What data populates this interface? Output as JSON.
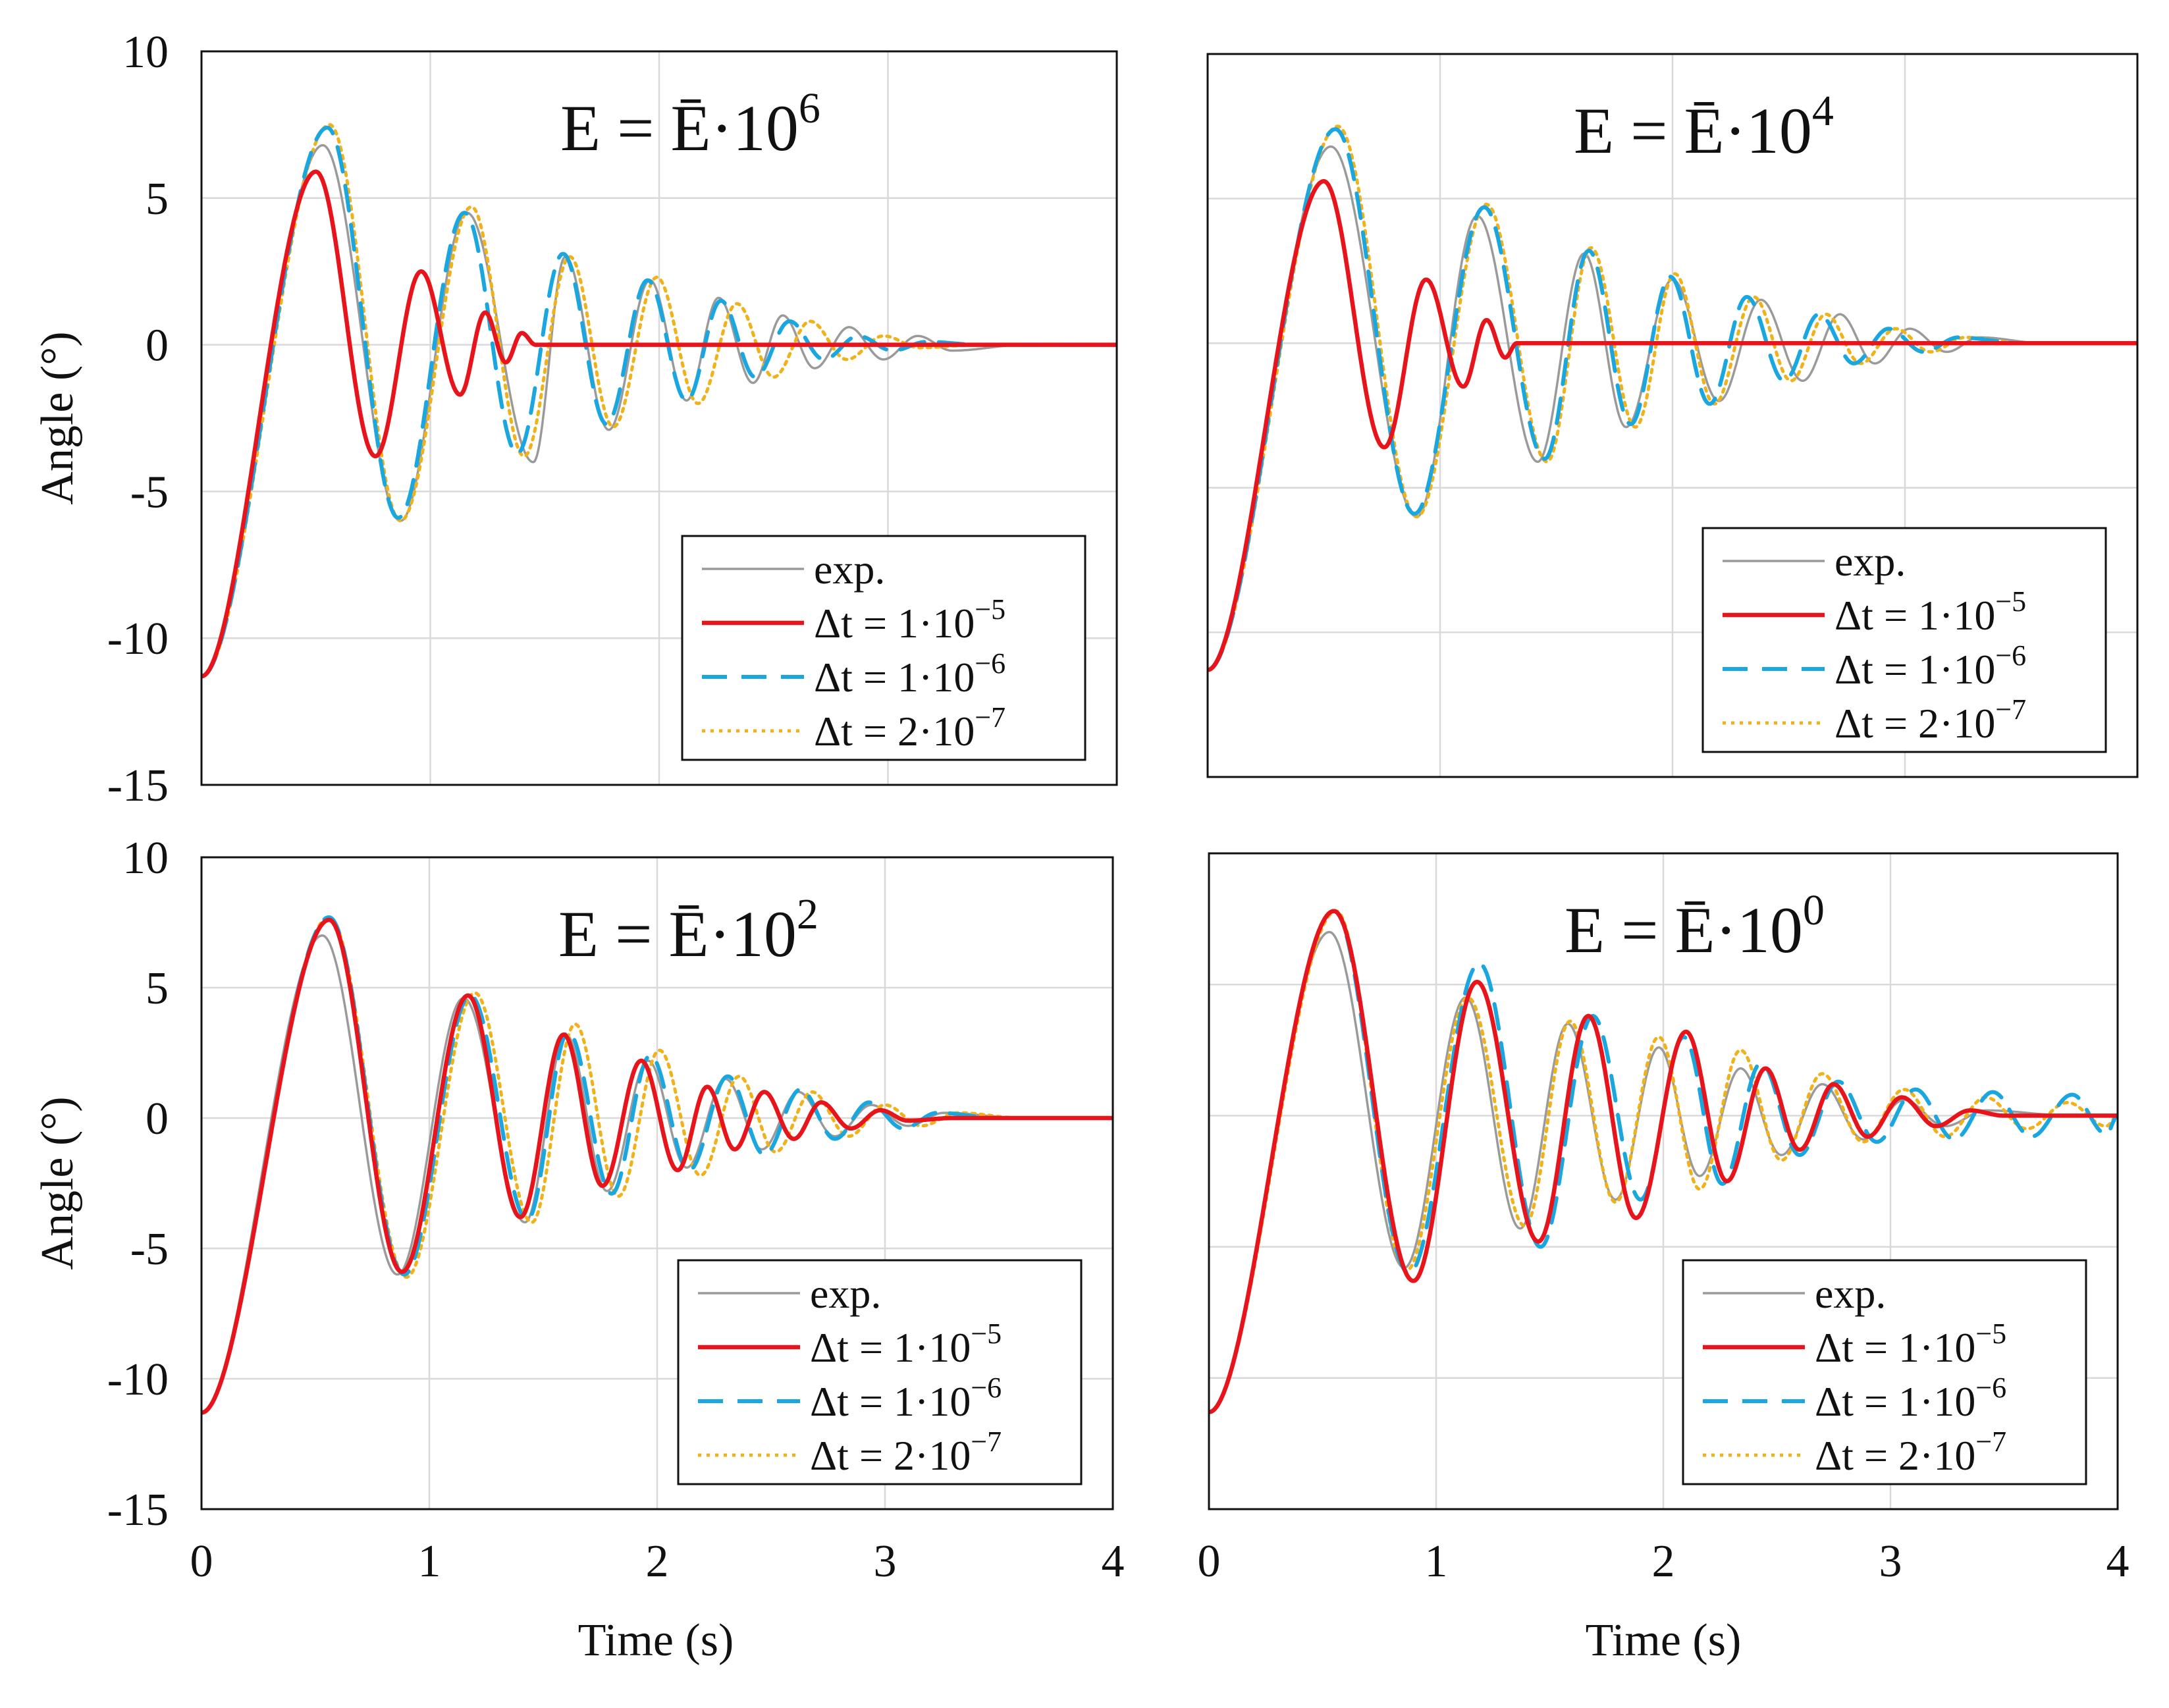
{
  "figure": {
    "ylabel": "Angle (°)",
    "xlabel": "Time (s)"
  },
  "legend": {
    "entries": [
      {
        "key": "exp",
        "parts": [
          "exp."
        ],
        "color": "#9a9a9a",
        "dash": "solid"
      },
      {
        "key": "dt1e5",
        "parts": [
          "Δt = 1·10",
          "−5"
        ],
        "color": "#e8141c",
        "dash": "solid"
      },
      {
        "key": "dt1e6",
        "parts": [
          "Δt = 1·10",
          "−6"
        ],
        "color": "#1aa7e0",
        "dash": "dashed"
      },
      {
        "key": "dt2e7",
        "parts": [
          "Δt = 2·10",
          "−7"
        ],
        "color": "#f0b21a",
        "dash": "dotted"
      }
    ]
  },
  "colors": {
    "exp": "#9a9a9a",
    "red": "#e8141c",
    "blue": "#1aa7e0",
    "yellow": "#f0b21a",
    "grid": "#d9d9d9",
    "frame": "#111111"
  },
  "chart_data": [
    {
      "type": "line",
      "title": {
        "base": "E = Ē·10",
        "exp": "6"
      },
      "xlabel": "",
      "ylabel": "Angle (°)",
      "xlim": [
        0,
        4
      ],
      "ylim": [
        -15,
        10
      ],
      "xticks": [
        0,
        1,
        2,
        3,
        4
      ],
      "yticks": [
        10,
        5,
        0,
        -5,
        -10,
        -15
      ],
      "xtick_labels_shown": false,
      "ytick_labels_shown": true,
      "grid": true,
      "legend": "bottom-right",
      "series": [
        {
          "name": "exp.",
          "peak_times": [
            0.53,
            0.87,
            1.16,
            1.45,
            1.59,
            1.78,
            1.96,
            2.12,
            2.26,
            2.41,
            2.54,
            2.68,
            2.83,
            2.98,
            3.13,
            3.28
          ],
          "peak_values": [
            6.8,
            -6.0,
            4.5,
            -4.0,
            3.0,
            -2.9,
            2.2,
            -1.9,
            1.6,
            -1.3,
            1.0,
            -0.8,
            0.6,
            -0.5,
            0.3,
            -0.2
          ],
          "settle": 3.6
        },
        {
          "name": "Δt = 1·10^-5",
          "peak_times": [
            0.5,
            0.76,
            0.96,
            1.13,
            1.24,
            1.33,
            1.4,
            1.46
          ],
          "peak_values": [
            5.9,
            -3.8,
            2.5,
            -1.7,
            1.1,
            -0.6,
            0.4,
            0.0
          ],
          "settle": 1.5
        },
        {
          "name": "Δt = 1·10^-6",
          "peak_times": [
            0.55,
            0.86,
            1.15,
            1.38,
            1.58,
            1.77,
            1.95,
            2.12,
            2.27,
            2.42,
            2.57,
            2.72,
            2.87,
            3.02,
            3.17
          ],
          "peak_values": [
            7.4,
            -5.9,
            4.5,
            -3.7,
            3.1,
            -2.7,
            2.2,
            -1.9,
            1.5,
            -1.1,
            0.8,
            -0.5,
            0.3,
            -0.2,
            0.1
          ],
          "settle": 3.4
        },
        {
          "name": "Δt = 2·10^-7",
          "peak_times": [
            0.56,
            0.87,
            1.18,
            1.41,
            1.61,
            1.8,
            1.99,
            2.17,
            2.34,
            2.5,
            2.66,
            2.82,
            2.98,
            3.14
          ],
          "peak_values": [
            7.5,
            -6.0,
            4.7,
            -3.8,
            3.0,
            -2.8,
            2.3,
            -2.0,
            1.4,
            -1.1,
            0.8,
            -0.5,
            0.3,
            -0.1
          ],
          "settle": 3.4
        }
      ]
    },
    {
      "type": "line",
      "title": {
        "base": "E = Ē·10",
        "exp": "4"
      },
      "xlabel": "",
      "ylabel": "",
      "xlim": [
        0,
        4
      ],
      "ylim": [
        -15,
        10
      ],
      "xticks": [
        0,
        1,
        2,
        3,
        4
      ],
      "yticks": [
        10,
        5,
        0,
        -5,
        -10,
        -15
      ],
      "xtick_labels_shown": false,
      "ytick_labels_shown": false,
      "grid": true,
      "legend": "bottom-right",
      "series": [
        {
          "name": "exp.",
          "peak_times": [
            0.53,
            0.9,
            1.16,
            1.42,
            1.62,
            1.8,
            2.0,
            2.2,
            2.38,
            2.56,
            2.72,
            2.87,
            3.02,
            3.18,
            3.32
          ],
          "peak_values": [
            6.8,
            -6.0,
            4.4,
            -4.1,
            3.1,
            -2.9,
            2.2,
            -2.0,
            1.5,
            -1.3,
            1.0,
            -0.7,
            0.5,
            -0.3,
            0.2
          ],
          "settle": 3.6
        },
        {
          "name": "Δt = 1·10^-5",
          "peak_times": [
            0.5,
            0.76,
            0.94,
            1.1,
            1.2,
            1.28,
            1.33
          ],
          "peak_values": [
            5.6,
            -3.6,
            2.2,
            -1.5,
            0.8,
            -0.5,
            0.0
          ],
          "settle": 1.36
        },
        {
          "name": "Δt = 1·10^-6",
          "peak_times": [
            0.55,
            0.89,
            1.19,
            1.45,
            1.64,
            1.82,
            1.99,
            2.16,
            2.32,
            2.48,
            2.63,
            2.78,
            2.93,
            3.08,
            3.23
          ],
          "peak_values": [
            7.4,
            -5.9,
            4.7,
            -4.0,
            3.2,
            -2.8,
            2.3,
            -2.1,
            1.6,
            -1.3,
            1.0,
            -0.7,
            0.5,
            -0.3,
            0.2
          ],
          "settle": 3.5
        },
        {
          "name": "Δt = 2·10^-7",
          "peak_times": [
            0.56,
            0.9,
            1.2,
            1.46,
            1.65,
            1.84,
            2.01,
            2.18,
            2.35,
            2.51,
            2.66,
            2.81,
            2.96,
            3.11,
            3.26
          ],
          "peak_values": [
            7.5,
            -6.0,
            4.8,
            -4.1,
            3.3,
            -2.9,
            2.4,
            -2.1,
            1.6,
            -1.3,
            1.0,
            -0.7,
            0.5,
            -0.3,
            0.2
          ],
          "settle": 3.5
        }
      ]
    },
    {
      "type": "line",
      "title": {
        "base": "E = Ē·10",
        "exp": "2"
      },
      "xlabel": "",
      "ylabel": "Angle (°)",
      "xlim": [
        0,
        4
      ],
      "ylim": [
        -15,
        10
      ],
      "xticks": [
        0,
        1,
        2,
        3,
        4
      ],
      "yticks": [
        10,
        5,
        0,
        -5,
        -10,
        -15
      ],
      "xtick_labels_shown": true,
      "ytick_labels_shown": true,
      "grid": true,
      "legend": "bottom-right",
      "series": [
        {
          "name": "exp.",
          "peak_times": [
            0.53,
            0.86,
            1.15,
            1.42,
            1.6,
            1.78,
            1.96,
            2.13,
            2.3,
            2.46,
            2.62,
            2.78,
            2.94,
            3.1,
            3.26
          ],
          "peak_values": [
            7.0,
            -6.0,
            4.6,
            -4.0,
            3.2,
            -2.8,
            2.2,
            -1.9,
            1.5,
            -1.2,
            1.0,
            -0.7,
            0.5,
            -0.3,
            0.2
          ],
          "settle": 3.6
        },
        {
          "name": "Δt = 1·10^-5",
          "peak_times": [
            0.56,
            0.88,
            1.17,
            1.4,
            1.59,
            1.76,
            1.93,
            2.09,
            2.22,
            2.34,
            2.47,
            2.6,
            2.72,
            2.85,
            2.98,
            3.1
          ],
          "peak_values": [
            7.6,
            -5.9,
            4.7,
            -3.8,
            3.2,
            -2.6,
            2.2,
            -2.0,
            1.2,
            -1.2,
            1.0,
            -0.8,
            0.6,
            -0.4,
            0.3,
            -0.1
          ],
          "settle": 3.3
        },
        {
          "name": "Δt = 1·10^-6",
          "peak_times": [
            0.56,
            0.89,
            1.18,
            1.43,
            1.61,
            1.8,
            1.97,
            2.14,
            2.31,
            2.47,
            2.63,
            2.78,
            2.93,
            3.08,
            3.23
          ],
          "peak_values": [
            7.7,
            -6.0,
            4.7,
            -3.9,
            3.3,
            -2.9,
            2.4,
            -2.0,
            1.6,
            -1.4,
            1.1,
            -0.8,
            0.6,
            -0.4,
            0.2
          ],
          "settle": 3.5
        },
        {
          "name": "Δt = 2·10^-7",
          "peak_times": [
            0.56,
            0.9,
            1.2,
            1.45,
            1.64,
            1.83,
            2.01,
            2.19,
            2.36,
            2.52,
            2.68,
            2.84,
            3.0,
            3.16,
            3.32
          ],
          "peak_values": [
            7.7,
            -6.1,
            4.8,
            -4.0,
            3.6,
            -3.0,
            2.6,
            -2.2,
            1.6,
            -1.3,
            1.0,
            -0.7,
            0.5,
            -0.3,
            0.2
          ],
          "settle": 3.6
        }
      ]
    },
    {
      "type": "line",
      "title": {
        "base": "E = Ē·10",
        "exp": "0"
      },
      "xlabel": "",
      "ylabel": "",
      "xlim": [
        0,
        4
      ],
      "ylim": [
        -15,
        10
      ],
      "xticks": [
        0,
        1,
        2,
        3,
        4
      ],
      "yticks": [
        10,
        5,
        0,
        -5,
        -10,
        -15
      ],
      "xtick_labels_shown": true,
      "ytick_labels_shown": false,
      "grid": true,
      "legend": "bottom-right",
      "series": [
        {
          "name": "exp.",
          "peak_times": [
            0.53,
            0.86,
            1.13,
            1.37,
            1.58,
            1.79,
            1.98,
            2.16,
            2.34,
            2.52,
            2.7,
            2.88,
            3.06,
            3.24,
            3.42
          ],
          "peak_values": [
            7.0,
            -5.8,
            4.5,
            -4.3,
            3.5,
            -3.2,
            2.6,
            -2.3,
            1.8,
            -1.5,
            1.2,
            -0.9,
            0.6,
            -0.4,
            0.2
          ],
          "settle": 3.8
        },
        {
          "name": "Δt = 1·10^-5",
          "peak_times": [
            0.55,
            0.9,
            1.18,
            1.45,
            1.67,
            1.88,
            2.1,
            2.28,
            2.45,
            2.6,
            2.75,
            2.9,
            3.05,
            3.2,
            3.35
          ],
          "peak_values": [
            7.8,
            -6.3,
            5.1,
            -4.8,
            3.8,
            -3.9,
            3.2,
            -2.5,
            1.8,
            -1.3,
            1.2,
            -0.8,
            0.7,
            -0.4,
            0.2
          ],
          "settle": 3.5
        },
        {
          "name": "Δt = 1·10^-6",
          "peak_times": [
            0.55,
            0.88,
            1.19,
            1.46,
            1.69,
            1.9,
            2.09,
            2.26,
            2.43,
            2.6,
            2.77,
            2.94,
            3.11,
            3.28,
            3.45,
            3.62,
            3.8,
            3.95
          ],
          "peak_values": [
            7.8,
            -6.0,
            5.8,
            -5.0,
            3.8,
            -3.2,
            3.0,
            -2.6,
            2.0,
            -1.5,
            1.3,
            -1.0,
            1.0,
            -0.9,
            0.9,
            -0.8,
            0.8,
            -0.7
          ],
          "settle": 4.0
        },
        {
          "name": "Δt = 2·10^-7",
          "peak_times": [
            0.56,
            0.87,
            1.14,
            1.39,
            1.59,
            1.79,
            1.98,
            2.16,
            2.34,
            2.52,
            2.7,
            2.88,
            3.06,
            3.24,
            3.42,
            3.6,
            3.78,
            3.95
          ],
          "peak_values": [
            7.8,
            -5.9,
            4.5,
            -4.2,
            3.6,
            -3.3,
            3.0,
            -2.8,
            2.5,
            -1.7,
            1.6,
            -1.0,
            1.0,
            -0.8,
            0.7,
            -0.5,
            0.5,
            -0.4
          ],
          "settle": 4.0
        }
      ]
    }
  ]
}
